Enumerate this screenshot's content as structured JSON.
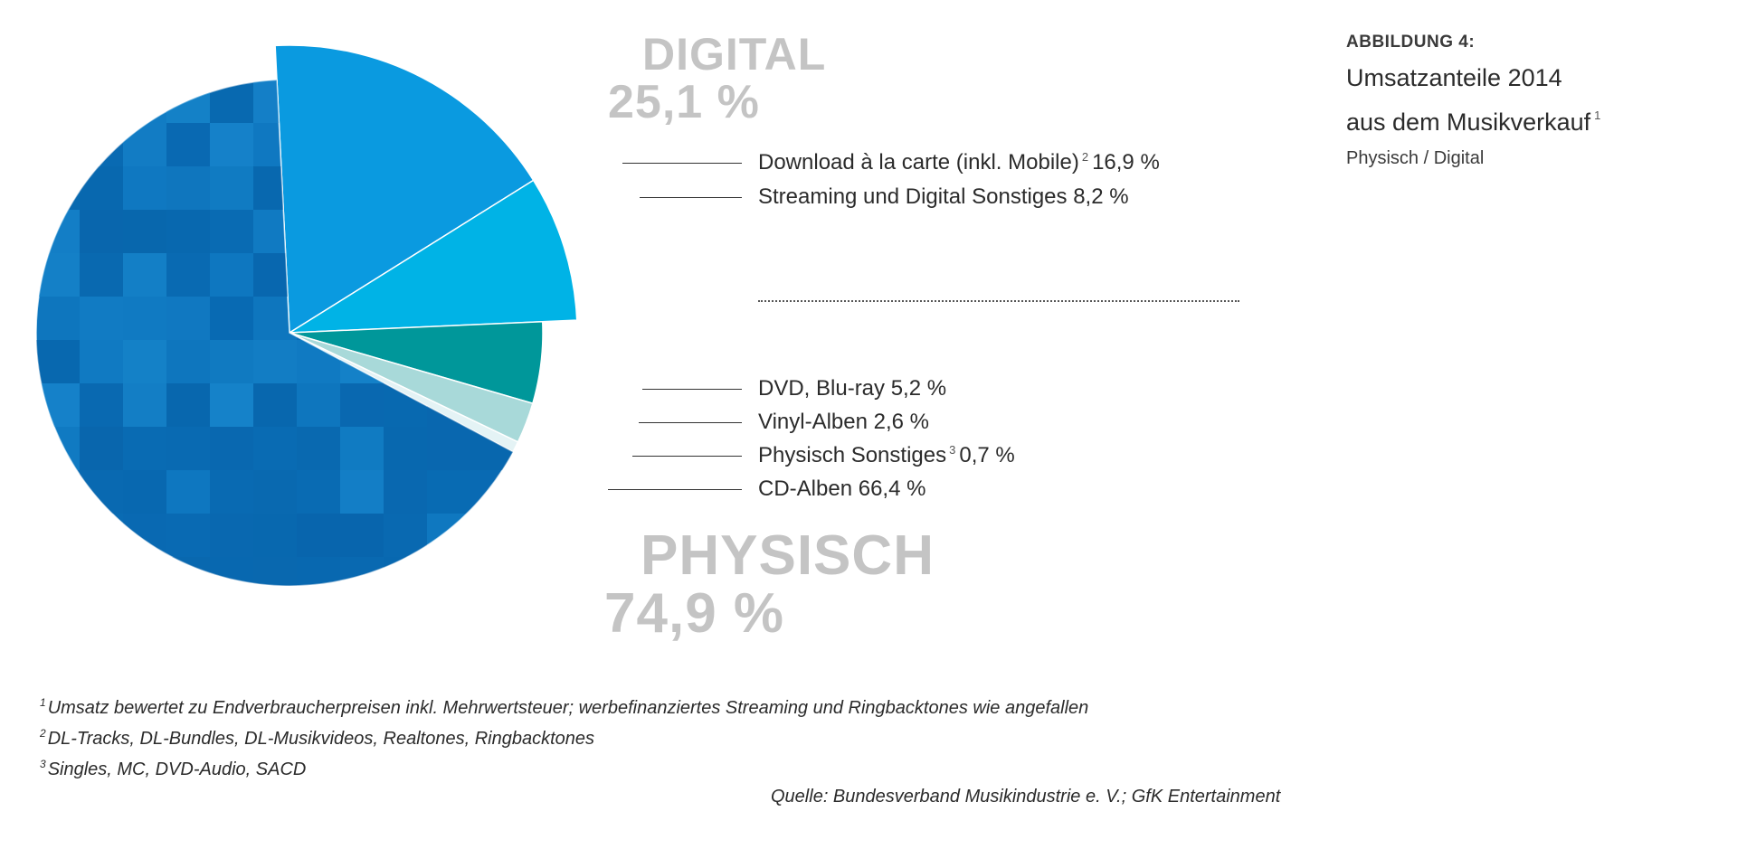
{
  "chart_data": {
    "type": "pie",
    "title": "Umsatzanteile 2014 aus dem Musikverkauf",
    "groups": [
      {
        "name": "DIGITAL",
        "percent_label": "25,1 %",
        "value": 25.1
      },
      {
        "name": "PHYSISCH",
        "percent_label": "74,9 %",
        "value": 74.9
      }
    ],
    "slices": [
      {
        "label": "Download à la carte (inkl. Mobile)",
        "footnote": "2",
        "value": 16.9,
        "value_label": "16,9 %",
        "group": "DIGITAL",
        "color": "#0a9ae0",
        "exploded": true
      },
      {
        "label": "Streaming und Digital Sonstiges",
        "footnote": "",
        "value": 8.2,
        "value_label": "8,2 %",
        "group": "DIGITAL",
        "color": "#00b3e6",
        "exploded": true
      },
      {
        "label": "DVD, Blu-ray",
        "footnote": "",
        "value": 5.2,
        "value_label": "5,2 %",
        "group": "PHYSISCH",
        "color": "#00979a",
        "exploded": false
      },
      {
        "label": "Vinyl-Alben",
        "footnote": "",
        "value": 2.6,
        "value_label": "2,6 %",
        "group": "PHYSISCH",
        "color": "#a8d9d9",
        "exploded": false
      },
      {
        "label": "Physisch Sonstiges",
        "footnote": "3",
        "value": 0.7,
        "value_label": "0,7 %",
        "group": "PHYSISCH",
        "color": "#e4f3f5",
        "exploded": false
      },
      {
        "label": "CD-Alben",
        "footnote": "",
        "value": 66.4,
        "value_label": "66,4 %",
        "group": "PHYSISCH",
        "color": "#0a6fb8",
        "exploded": false
      }
    ]
  },
  "figure": {
    "label": "ABBILDUNG 4:",
    "title_line1": "Umsatzanteile 2014",
    "title_line2": "aus dem Musikverkauf",
    "title_footnote": "1",
    "subtitle": "Physisch / Digital"
  },
  "footnotes": [
    {
      "mark": "1",
      "text": "Umsatz bewertet zu Endverbraucherpreisen inkl. Mehrwertsteuer; werbefinanziertes Streaming und Ringbacktones wie angefallen"
    },
    {
      "mark": "2",
      "text": "DL-Tracks, DL-Bundles, DL-Musikvideos, Realtones, Ringbacktones"
    },
    {
      "mark": "3",
      "text": "Singles, MC, DVD-Audio, SACD"
    }
  ],
  "source": "Quelle: Bundesverband Musikindustrie e. V.; GfK Entertainment",
  "colors": {
    "group_title": "#c4c4c4",
    "mosaic_light": "#1a8ad0",
    "mosaic_dark": "#0862a8"
  }
}
